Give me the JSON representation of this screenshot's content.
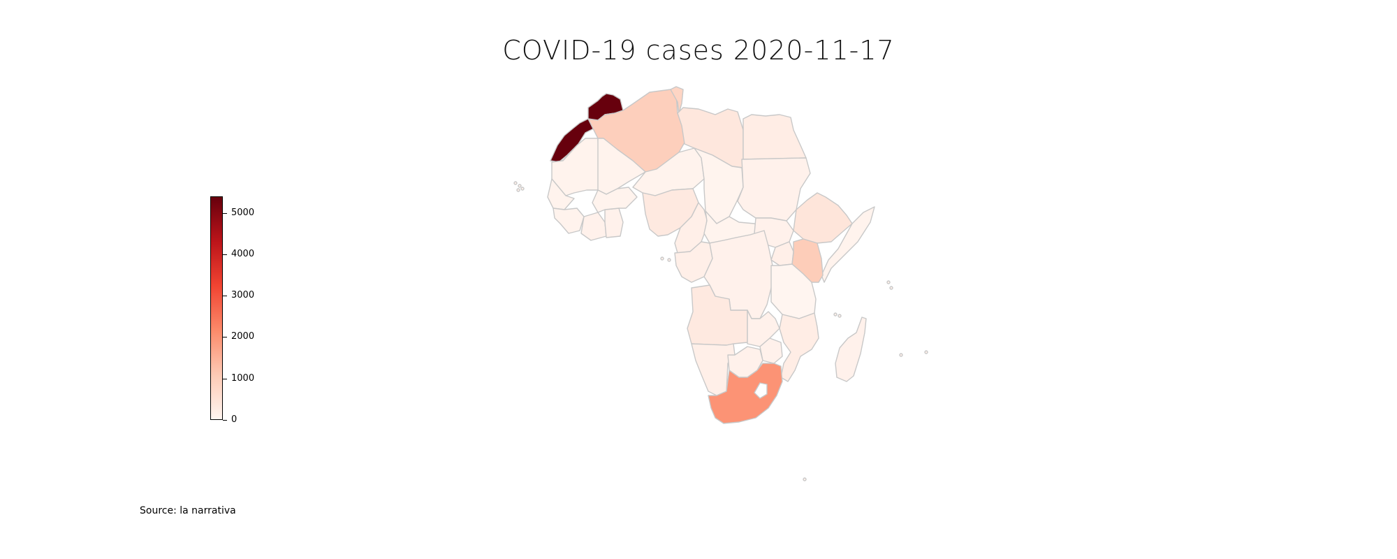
{
  "title": "COVID-19 cases 2020-11-17",
  "source": "Source: la narrativa",
  "colorbar": {
    "min": 0,
    "max": 5400,
    "ticks": [
      "0",
      "1000",
      "2000",
      "3000",
      "4000",
      "5000"
    ],
    "colors": [
      "#fff5f0",
      "#fdcab5",
      "#fc8a6a",
      "#f14432",
      "#bc141a",
      "#67000d"
    ]
  },
  "chart_data": {
    "type": "choropleth",
    "title": "COVID-19 cases 2020-11-17",
    "value_range": [
      0,
      5400
    ],
    "regions": [
      {
        "name": "Morocco",
        "value": 5400
      },
      {
        "name": "South Africa",
        "value": 2000
      },
      {
        "name": "Kenya",
        "value": 1000
      },
      {
        "name": "Algeria",
        "value": 950
      },
      {
        "name": "Tunisia",
        "value": 800
      },
      {
        "name": "Libya",
        "value": 350
      },
      {
        "name": "Egypt",
        "value": 200
      },
      {
        "name": "Ethiopia",
        "value": 400
      },
      {
        "name": "Sudan",
        "value": 100
      },
      {
        "name": "Nigeria",
        "value": 300
      },
      {
        "name": "Cameroon",
        "value": 150
      },
      {
        "name": "Uganda",
        "value": 150
      },
      {
        "name": "Tanzania",
        "value": 0
      },
      {
        "name": "Angola",
        "value": 300
      },
      {
        "name": "Mozambique",
        "value": 200
      },
      {
        "name": "Zambia",
        "value": 100
      },
      {
        "name": "Zimbabwe",
        "value": 100
      },
      {
        "name": "Botswana",
        "value": 100
      },
      {
        "name": "Namibia",
        "value": 150
      },
      {
        "name": "DR Congo",
        "value": 100
      },
      {
        "name": "Madagascar",
        "value": 100
      },
      {
        "name": "Somalia",
        "value": 50
      },
      {
        "name": "Mauritania",
        "value": 50
      },
      {
        "name": "Mali",
        "value": 50
      },
      {
        "name": "Niger",
        "value": 50
      },
      {
        "name": "Chad",
        "value": 30
      },
      {
        "name": "Ghana",
        "value": 100
      },
      {
        "name": "Senegal",
        "value": 50
      },
      {
        "name": "Western Sahara",
        "value": 0
      }
    ]
  }
}
